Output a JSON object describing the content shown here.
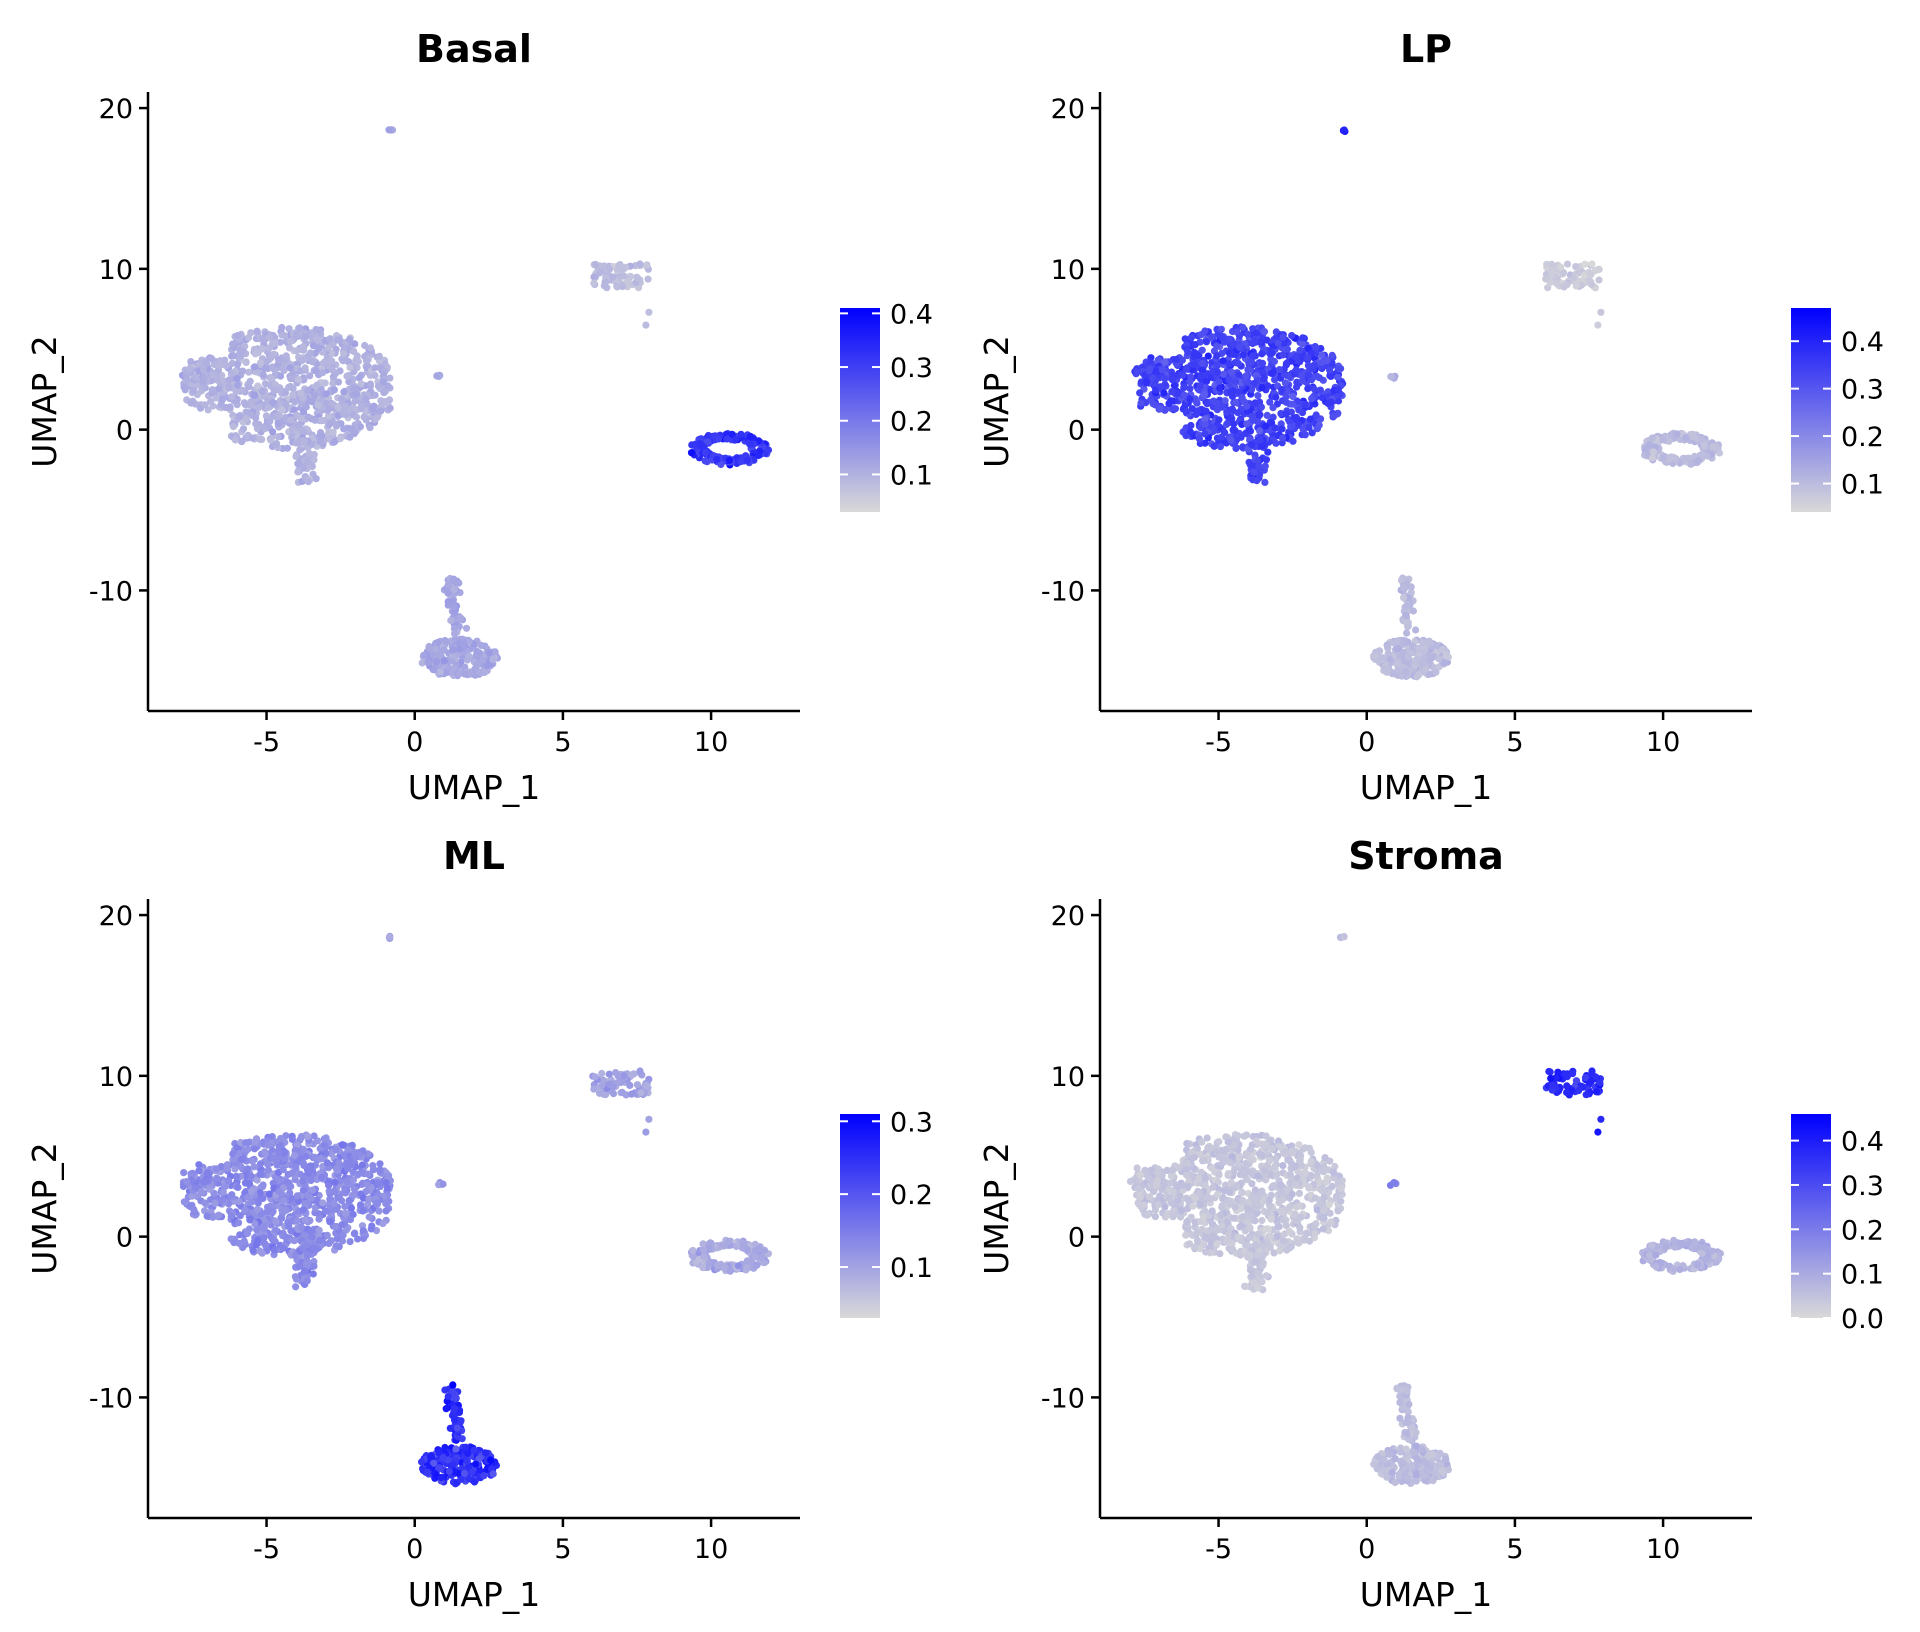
{
  "chart_data": [
    {
      "type": "scatter",
      "title": "Basal",
      "xlabel": "UMAP_1",
      "ylabel": "UMAP_2",
      "xlim": [
        -9,
        13
      ],
      "ylim": [
        -17.5,
        21
      ],
      "xticks": [
        -5,
        0,
        5,
        10
      ],
      "xtick_labels": [
        "-5",
        "0",
        "5",
        "10"
      ],
      "yticks": [
        -10,
        0,
        10,
        20
      ],
      "ytick_labels": [
        "-10",
        "0",
        "10",
        "20"
      ],
      "grid": false,
      "legend": "right",
      "color_low": "#d9d9d9",
      "color_high": "#0000ff",
      "colorbar": {
        "min": 0.03,
        "max": 0.41,
        "ticks": [
          0.1,
          0.2,
          0.3,
          0.4
        ],
        "tick_labels": [
          "0.1",
          "0.2",
          "0.3",
          "0.4"
        ]
      },
      "clusters": [
        {
          "shape": "blob",
          "center": [
            -4.0,
            3.0
          ],
          "value": 0.1
        },
        {
          "shape": "ring",
          "center": [
            10.6,
            -1.2
          ],
          "value": 0.32
        },
        {
          "shape": "stroma",
          "center": [
            7.0,
            9.5
          ],
          "value": 0.08
        },
        {
          "shape": "ml",
          "center": [
            1.5,
            -14.0
          ],
          "value": 0.12
        },
        {
          "shape": "dot",
          "center": [
            -0.8,
            18.6
          ],
          "value": 0.12
        },
        {
          "shape": "dot",
          "center": [
            0.9,
            3.3
          ],
          "value": 0.12
        }
      ]
    },
    {
      "type": "scatter",
      "title": "LP",
      "xlabel": "UMAP_1",
      "ylabel": "UMAP_2",
      "xlim": [
        -9,
        13
      ],
      "ylim": [
        -17.5,
        21
      ],
      "xticks": [
        -5,
        0,
        5,
        10
      ],
      "xtick_labels": [
        "-5",
        "0",
        "5",
        "10"
      ],
      "yticks": [
        -10,
        0,
        10,
        20
      ],
      "ytick_labels": [
        "-10",
        "0",
        "10",
        "20"
      ],
      "grid": false,
      "legend": "right",
      "color_low": "#d9d9d9",
      "color_high": "#0000ff",
      "colorbar": {
        "min": 0.04,
        "max": 0.47,
        "ticks": [
          0.1,
          0.2,
          0.3,
          0.4
        ],
        "tick_labels": [
          "0.1",
          "0.2",
          "0.3",
          "0.4"
        ]
      },
      "clusters": [
        {
          "shape": "blob",
          "center": [
            -4.0,
            3.0
          ],
          "value": 0.34
        },
        {
          "shape": "ring",
          "center": [
            10.6,
            -1.2
          ],
          "value": 0.1
        },
        {
          "shape": "stroma",
          "center": [
            7.0,
            9.5
          ],
          "value": 0.07
        },
        {
          "shape": "ml",
          "center": [
            1.5,
            -14.0
          ],
          "value": 0.1
        },
        {
          "shape": "dot",
          "center": [
            -0.8,
            18.6
          ],
          "value": 0.38
        },
        {
          "shape": "dot",
          "center": [
            0.9,
            3.3
          ],
          "value": 0.12
        }
      ]
    },
    {
      "type": "scatter",
      "title": "ML",
      "xlabel": "UMAP_1",
      "ylabel": "UMAP_2",
      "xlim": [
        -9,
        13
      ],
      "ylim": [
        -17.5,
        21
      ],
      "xticks": [
        -5,
        0,
        5,
        10
      ],
      "xtick_labels": [
        "-5",
        "0",
        "5",
        "10"
      ],
      "yticks": [
        -10,
        0,
        10,
        20
      ],
      "ytick_labels": [
        "-10",
        "0",
        "10",
        "20"
      ],
      "grid": false,
      "legend": "right",
      "color_low": "#d9d9d9",
      "color_high": "#0000ff",
      "colorbar": {
        "min": 0.03,
        "max": 0.31,
        "ticks": [
          0.1,
          0.2,
          0.3
        ],
        "tick_labels": [
          "0.1",
          "0.2",
          "0.3"
        ]
      },
      "clusters": [
        {
          "shape": "blob",
          "center": [
            -4.0,
            3.0
          ],
          "value": 0.13
        },
        {
          "shape": "ring",
          "center": [
            10.6,
            -1.2
          ],
          "value": 0.09
        },
        {
          "shape": "stroma",
          "center": [
            7.0,
            9.5
          ],
          "value": 0.1
        },
        {
          "shape": "ml",
          "center": [
            1.5,
            -14.0
          ],
          "value": 0.25
        },
        {
          "shape": "dot",
          "center": [
            -0.8,
            18.6
          ],
          "value": 0.1
        },
        {
          "shape": "dot",
          "center": [
            0.9,
            3.3
          ],
          "value": 0.1
        }
      ]
    },
    {
      "type": "scatter",
      "title": "Stroma",
      "xlabel": "UMAP_1",
      "ylabel": "UMAP_2",
      "xlim": [
        -9,
        13
      ],
      "ylim": [
        -17.5,
        21
      ],
      "xticks": [
        -5,
        0,
        5,
        10
      ],
      "xtick_labels": [
        "-5",
        "0",
        "5",
        "10"
      ],
      "yticks": [
        -10,
        0,
        10,
        20
      ],
      "ytick_labels": [
        "-10",
        "0",
        "10",
        "20"
      ],
      "grid": false,
      "legend": "right",
      "color_low": "#d9d9d9",
      "color_high": "#0000ff",
      "colorbar": {
        "min": 0.0,
        "max": 0.46,
        "ticks": [
          0.0,
          0.1,
          0.2,
          0.3,
          0.4
        ],
        "tick_labels": [
          "0.0",
          "0.1",
          "0.2",
          "0.3",
          "0.4"
        ]
      },
      "clusters": [
        {
          "shape": "blob",
          "center": [
            -4.0,
            3.0
          ],
          "value": 0.04
        },
        {
          "shape": "ring",
          "center": [
            10.6,
            -1.2
          ],
          "value": 0.08
        },
        {
          "shape": "stroma",
          "center": [
            7.0,
            9.5
          ],
          "value": 0.37
        },
        {
          "shape": "ml",
          "center": [
            1.5,
            -14.0
          ],
          "value": 0.06
        },
        {
          "shape": "dot",
          "center": [
            -0.8,
            18.6
          ],
          "value": 0.06
        },
        {
          "shape": "dot",
          "center": [
            0.9,
            3.3
          ],
          "value": 0.2
        }
      ]
    }
  ]
}
